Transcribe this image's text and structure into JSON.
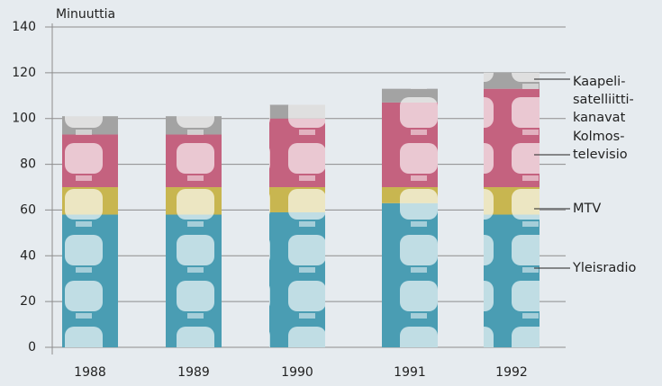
{
  "chart_data": {
    "type": "stacked_bar",
    "y_label": "Minuuttia",
    "categories": [
      "1988",
      "1989",
      "1990",
      "1991",
      "1992"
    ],
    "series": [
      {
        "name": "Yleisradio",
        "color": "#4a9db3",
        "values": [
          58,
          58,
          59,
          63,
          58
        ]
      },
      {
        "name": "MTV",
        "color": "#c8b650",
        "values": [
          12,
          12,
          11,
          7,
          12
        ]
      },
      {
        "name": "Kolmos-\ntelevisio",
        "color": "#c4627f",
        "values": [
          23,
          23,
          30,
          37,
          43
        ]
      },
      {
        "name": "Kaapeli-\nsatelliitti-\nkanavat",
        "color": "#a3a3a3",
        "values": [
          8,
          8,
          6,
          6,
          7
        ]
      }
    ],
    "ylim": [
      0,
      140
    ],
    "yticks": [
      0,
      20,
      40,
      60,
      80,
      100,
      120,
      140
    ],
    "grid": true
  }
}
